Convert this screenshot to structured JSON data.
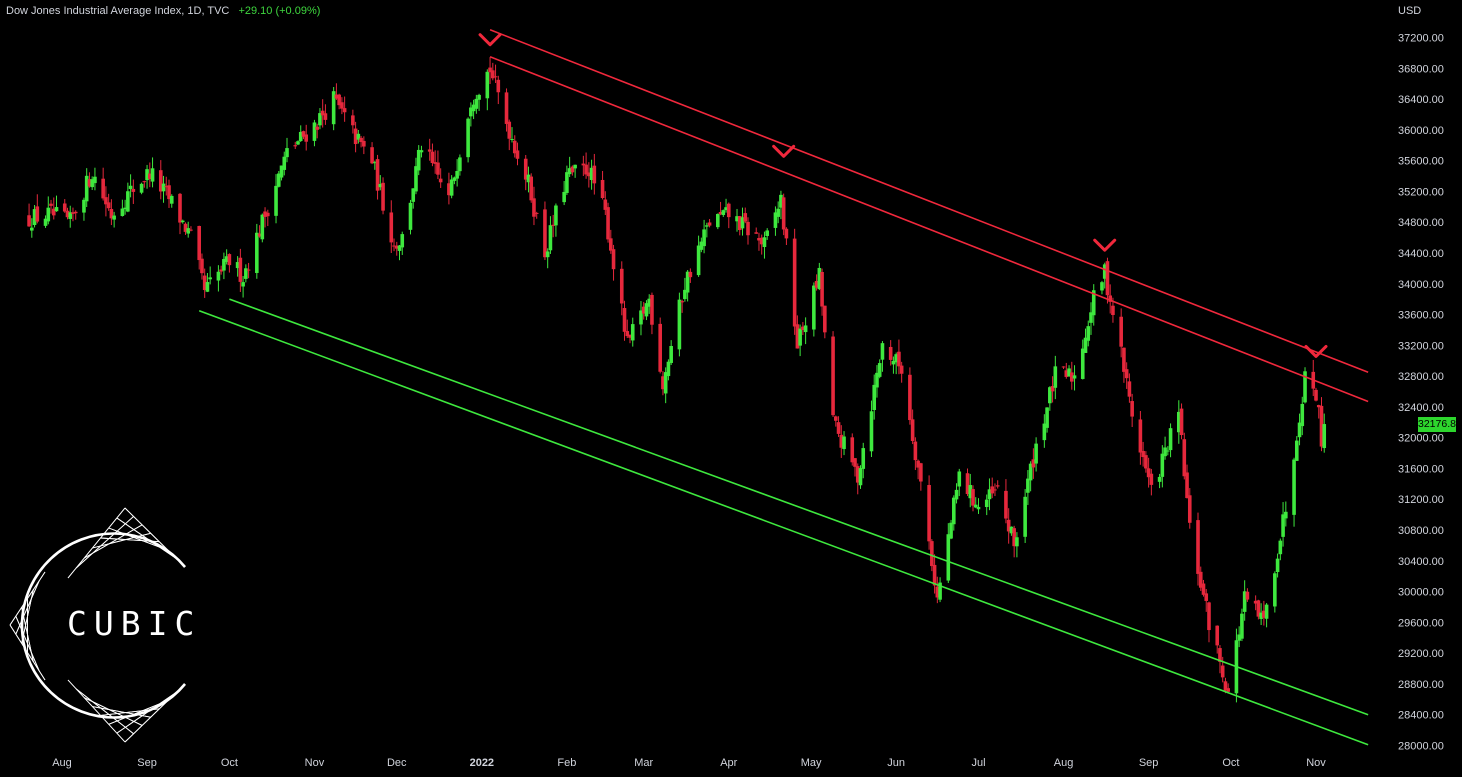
{
  "header": {
    "title": "Dow Jones Industrial Average Index, 1D, TVC",
    "change": "+29.10 (+0.09%)"
  },
  "currency": "USD",
  "last_price_label": "32176.87",
  "logo_text": "CUBIC",
  "colors": {
    "background": "#000000",
    "up": "#3ee83e",
    "down": "#e6283c",
    "resistance": "#f0283c",
    "support": "#3ee83e",
    "text": "#d1d4dc"
  },
  "chart_data": {
    "type": "candlestick",
    "title": "Dow Jones Industrial Average Index, 1D, TVC",
    "ylabel": "USD",
    "ylim": [
      28000,
      37400
    ],
    "y_ticks": [
      "37200.00",
      "36800.00",
      "36400.00",
      "36000.00",
      "35600.00",
      "35200.00",
      "34800.00",
      "34400.00",
      "34000.00",
      "33600.00",
      "33200.00",
      "32800.00",
      "32400.00",
      "32000.00",
      "31600.00",
      "31200.00",
      "30800.00",
      "30400.00",
      "30000.00",
      "29600.00",
      "29200.00",
      "28800.00",
      "28400.00",
      "28000.00"
    ],
    "x_ticks": [
      "Aug",
      "Sep",
      "Oct",
      "Nov",
      "Dec",
      "2022",
      "Feb",
      "Mar",
      "Apr",
      "May",
      "Jun",
      "Jul",
      "Aug",
      "Sep",
      "Oct",
      "Nov"
    ],
    "x_tick_dates": [
      "2021-08",
      "2021-09",
      "2021-10",
      "2021-11",
      "2021-12",
      "2022-01",
      "2022-02",
      "2022-03",
      "2022-04",
      "2022-05",
      "2022-06",
      "2022-07",
      "2022-08",
      "2022-09",
      "2022-10",
      "2022-11"
    ],
    "closes": [
      {
        "date": "2021-07-20",
        "close": 34850
      },
      {
        "date": "2021-07-28",
        "close": 34900
      },
      {
        "date": "2021-08-04",
        "close": 34800
      },
      {
        "date": "2021-08-12",
        "close": 35450
      },
      {
        "date": "2021-08-19",
        "close": 34900
      },
      {
        "date": "2021-08-26",
        "close": 35200
      },
      {
        "date": "2021-09-02",
        "close": 35450
      },
      {
        "date": "2021-09-10",
        "close": 35050
      },
      {
        "date": "2021-09-17",
        "close": 34600
      },
      {
        "date": "2021-09-22",
        "close": 33900
      },
      {
        "date": "2021-10-01",
        "close": 34300
      },
      {
        "date": "2021-10-06",
        "close": 34100
      },
      {
        "date": "2021-10-14",
        "close": 34900
      },
      {
        "date": "2021-10-22",
        "close": 35700
      },
      {
        "date": "2021-11-02",
        "close": 36100
      },
      {
        "date": "2021-11-08",
        "close": 36400
      },
      {
        "date": "2021-11-16",
        "close": 35900
      },
      {
        "date": "2021-11-22",
        "close": 35600
      },
      {
        "date": "2021-11-30",
        "close": 34500
      },
      {
        "date": "2021-12-03",
        "close": 34600
      },
      {
        "date": "2021-12-10",
        "close": 35800
      },
      {
        "date": "2021-12-20",
        "close": 35100
      },
      {
        "date": "2021-12-28",
        "close": 36400
      },
      {
        "date": "2022-01-04",
        "close": 36800
      },
      {
        "date": "2022-01-10",
        "close": 36100
      },
      {
        "date": "2022-01-18",
        "close": 35300
      },
      {
        "date": "2022-01-24",
        "close": 34400
      },
      {
        "date": "2022-02-01",
        "close": 35400
      },
      {
        "date": "2022-02-09",
        "close": 35500
      },
      {
        "date": "2022-02-15",
        "close": 34900
      },
      {
        "date": "2022-02-23",
        "close": 33200
      },
      {
        "date": "2022-03-03",
        "close": 33800
      },
      {
        "date": "2022-03-08",
        "close": 32700
      },
      {
        "date": "2022-03-16",
        "close": 34000
      },
      {
        "date": "2022-03-25",
        "close": 34800
      },
      {
        "date": "2022-04-01",
        "close": 34900
      },
      {
        "date": "2022-04-08",
        "close": 34700
      },
      {
        "date": "2022-04-14",
        "close": 34500
      },
      {
        "date": "2022-04-20",
        "close": 35100
      },
      {
        "date": "2022-04-26",
        "close": 33200
      },
      {
        "date": "2022-05-04",
        "close": 34100
      },
      {
        "date": "2022-05-09",
        "close": 32200
      },
      {
        "date": "2022-05-18",
        "close": 31500
      },
      {
        "date": "2022-05-27",
        "close": 33200
      },
      {
        "date": "2022-06-03",
        "close": 32900
      },
      {
        "date": "2022-06-10",
        "close": 31400
      },
      {
        "date": "2022-06-16",
        "close": 29900
      },
      {
        "date": "2022-06-24",
        "close": 31500
      },
      {
        "date": "2022-07-01",
        "close": 31100
      },
      {
        "date": "2022-07-08",
        "close": 31300
      },
      {
        "date": "2022-07-14",
        "close": 30600
      },
      {
        "date": "2022-07-22",
        "close": 31900
      },
      {
        "date": "2022-07-29",
        "close": 32800
      },
      {
        "date": "2022-08-05",
        "close": 32800
      },
      {
        "date": "2022-08-12",
        "close": 33800
      },
      {
        "date": "2022-08-16",
        "close": 34150
      },
      {
        "date": "2022-08-22",
        "close": 33100
      },
      {
        "date": "2022-08-26",
        "close": 32300
      },
      {
        "date": "2022-09-02",
        "close": 31300
      },
      {
        "date": "2022-09-12",
        "close": 32300
      },
      {
        "date": "2022-09-16",
        "close": 30800
      },
      {
        "date": "2022-09-23",
        "close": 29600
      },
      {
        "date": "2022-09-30",
        "close": 28700
      },
      {
        "date": "2022-10-06",
        "close": 29900
      },
      {
        "date": "2022-10-13",
        "close": 29600
      },
      {
        "date": "2022-10-21",
        "close": 31100
      },
      {
        "date": "2022-10-28",
        "close": 32800
      },
      {
        "date": "2022-11-01",
        "close": 32600
      },
      {
        "date": "2022-11-03",
        "close": 32000
      },
      {
        "date": "2022-11-04",
        "close": 32177
      }
    ],
    "annotations": [
      {
        "kind": "resistance-line",
        "color": "red",
        "from": {
          "date": "2022-01-04",
          "price": 37300
        },
        "to": {
          "date": "2022-11-20",
          "price": 32850
        }
      },
      {
        "kind": "resistance-line",
        "color": "red",
        "from": {
          "date": "2022-01-04",
          "price": 36950
        },
        "to": {
          "date": "2022-11-20",
          "price": 32470
        }
      },
      {
        "kind": "support-line",
        "color": "green",
        "from": {
          "date": "2021-09-20",
          "price": 33650
        },
        "to": {
          "date": "2022-11-20",
          "price": 28010
        }
      },
      {
        "kind": "support-line",
        "color": "green",
        "from": {
          "date": "2021-10-01",
          "price": 33800
        },
        "to": {
          "date": "2022-11-20",
          "price": 28400
        }
      },
      {
        "kind": "peak-marker",
        "date": "2022-01-04",
        "price": 36950
      },
      {
        "kind": "peak-marker",
        "date": "2022-04-21",
        "price": 35500
      },
      {
        "kind": "peak-marker",
        "date": "2022-08-16",
        "price": 34280
      },
      {
        "kind": "peak-marker",
        "date": "2022-11-01",
        "price": 32900
      }
    ],
    "grid": false,
    "legend": "none"
  }
}
